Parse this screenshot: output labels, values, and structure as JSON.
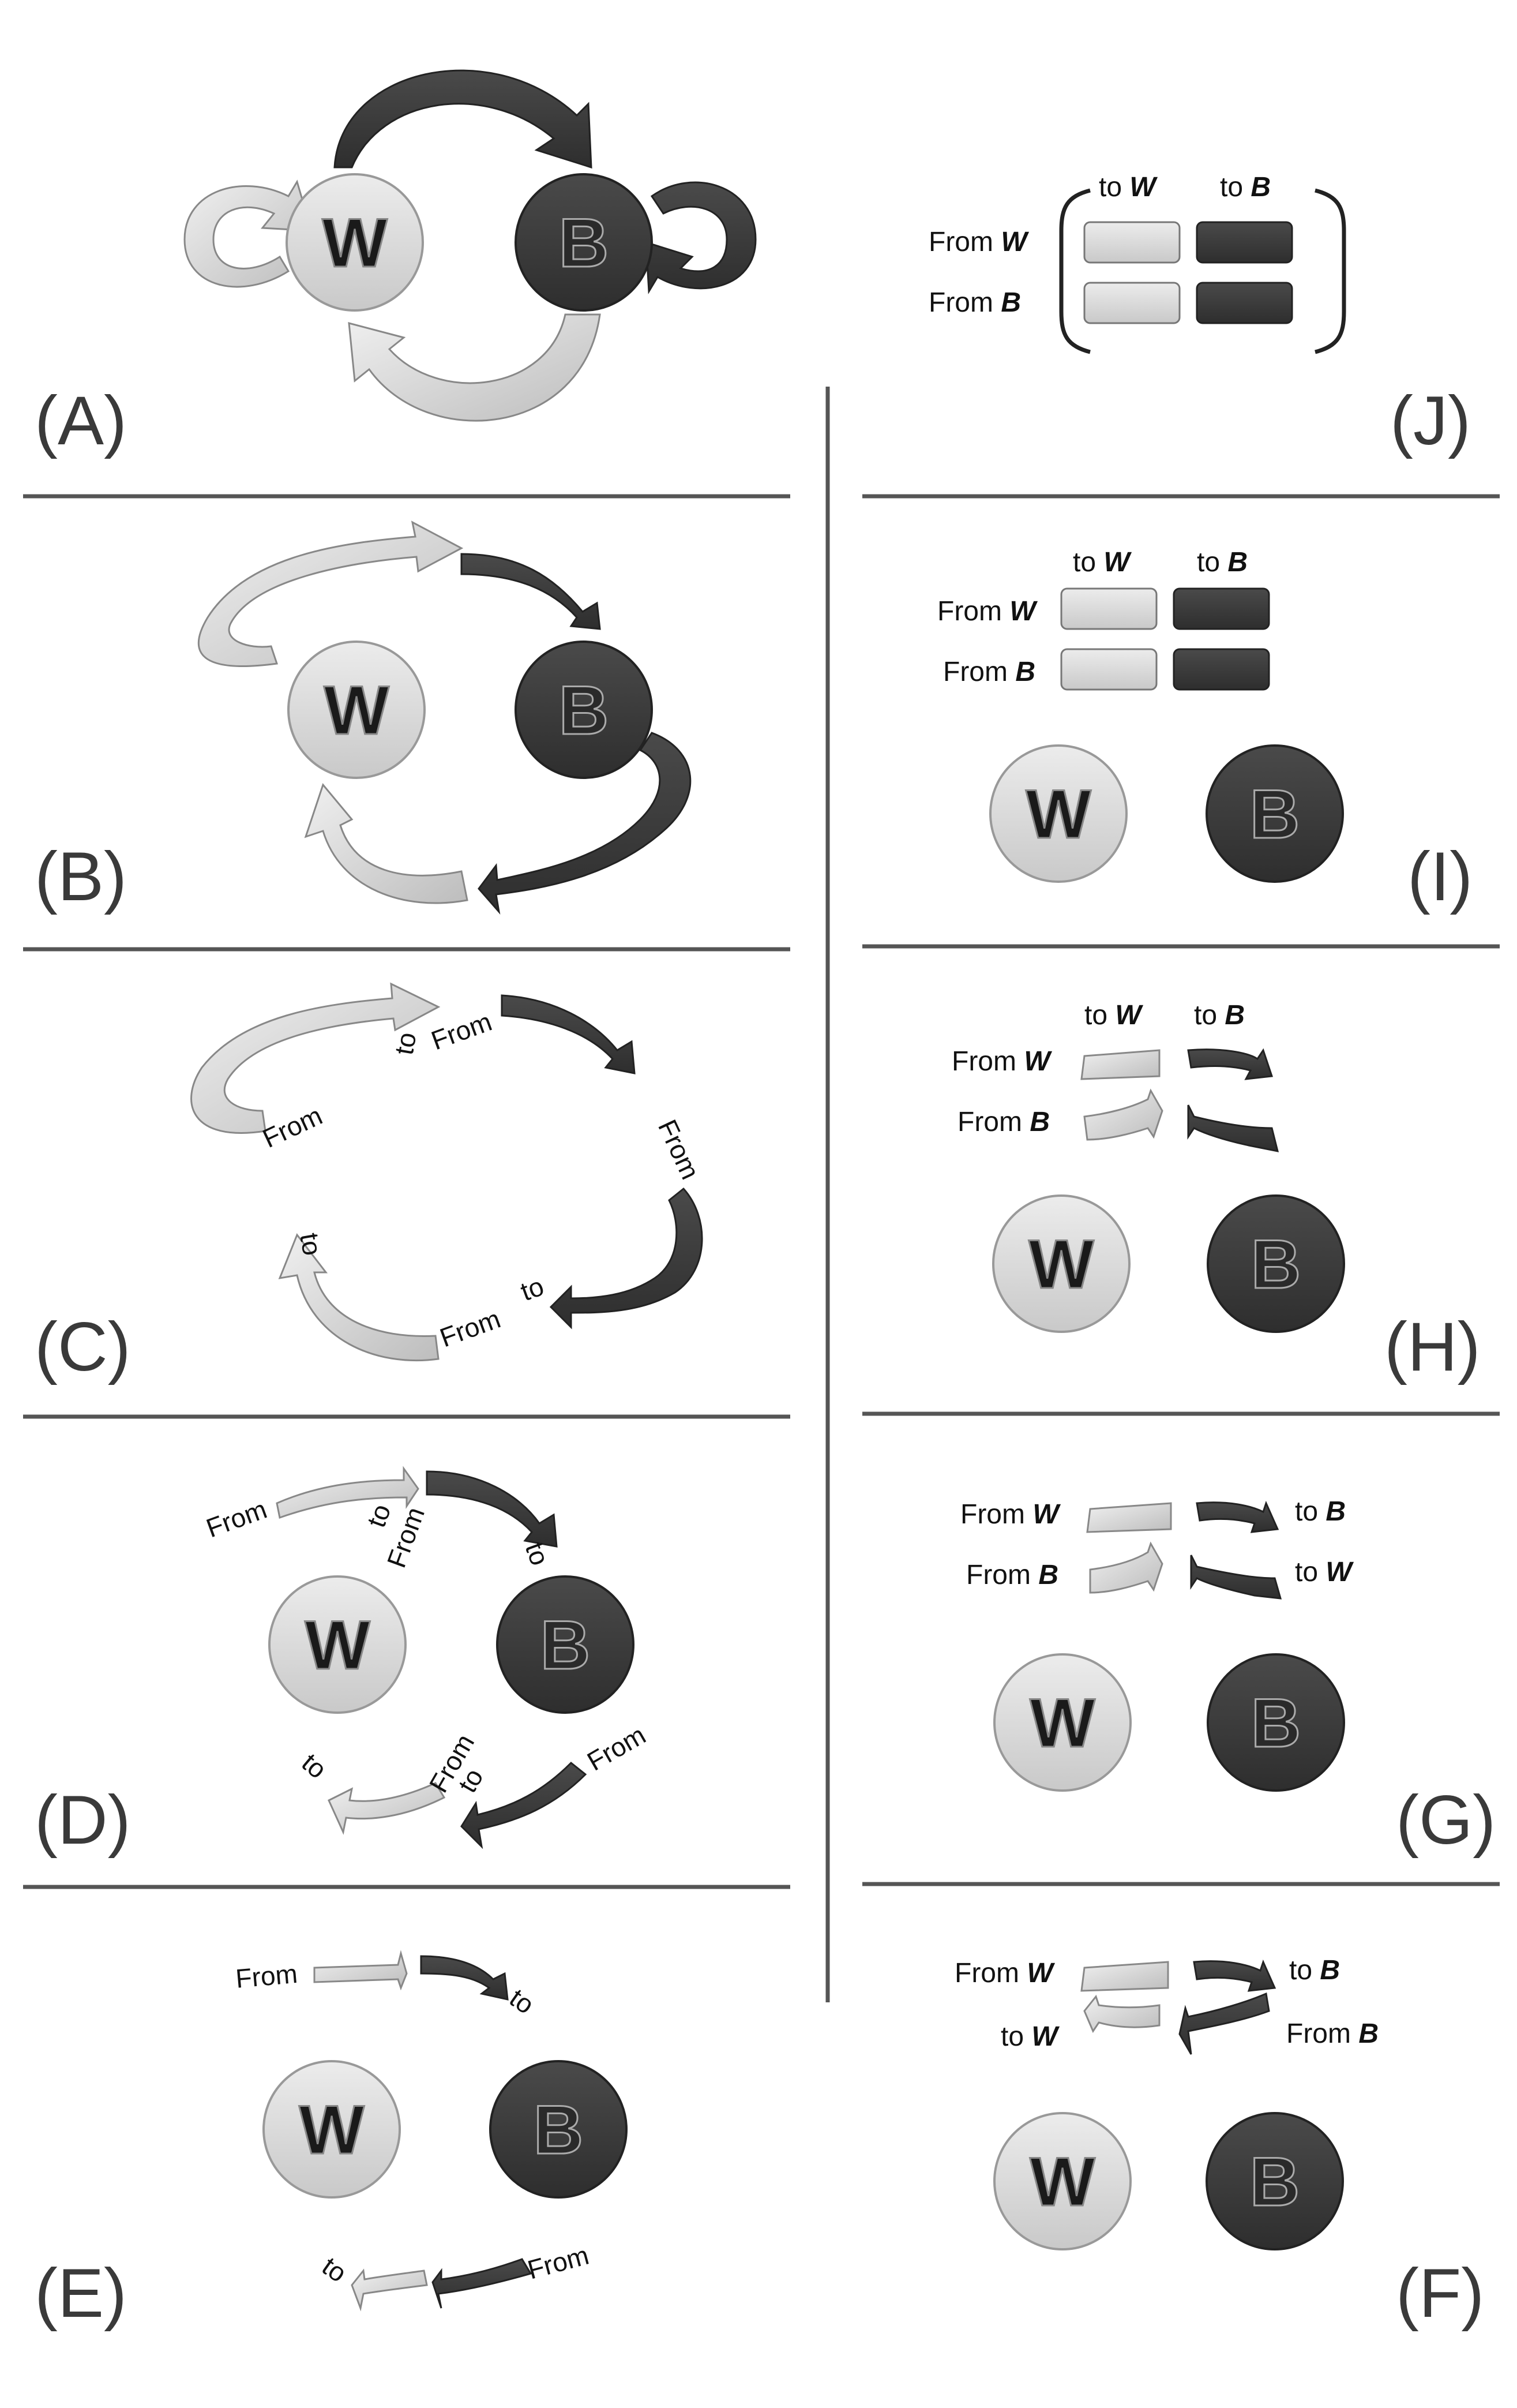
{
  "node_w": "W",
  "node_b": "B",
  "panels": {
    "a": "(A)",
    "b": "(B)",
    "c": "(C)",
    "d": "(D)",
    "e": "(E)",
    "f": "(F)",
    "g": "(G)",
    "h": "(H)",
    "i": "(I)",
    "j": "(J)"
  },
  "words": {
    "from": "From",
    "to": "to"
  },
  "labels": {
    "to_w_prefix": "to ",
    "to_b_prefix": "to ",
    "from_w_prefix": "From ",
    "from_b_prefix": "From ",
    "w": "W",
    "b": "B"
  },
  "colors": {
    "white_node": "#dcdcdc",
    "black_node": "#3b3b3b",
    "dark_arrow": "#3d3d3d",
    "light_arrow": "#d6d6d6"
  }
}
